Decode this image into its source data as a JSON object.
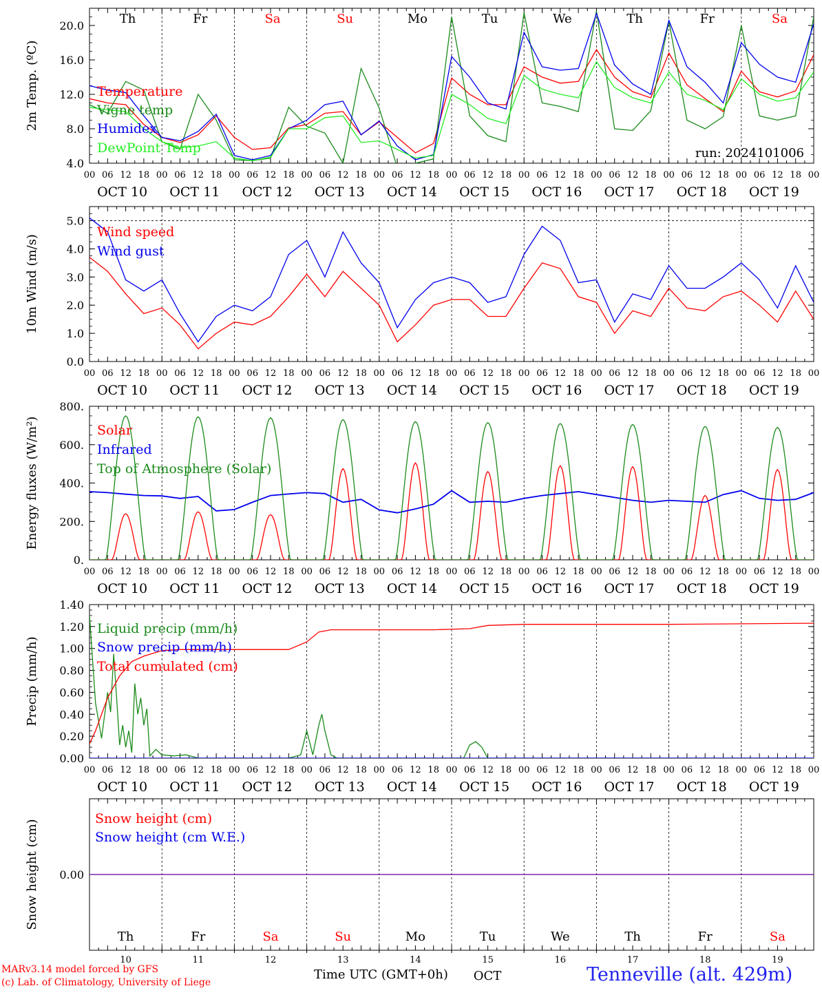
{
  "meteogram": {
    "days": 10,
    "hour_ticks": [
      "00",
      "06",
      "12",
      "18"
    ],
    "date_labels": [
      "OCT 10",
      "OCT 11",
      "OCT 12",
      "OCT 13",
      "OCT 14",
      "OCT 15",
      "OCT 16",
      "OCT 17",
      "OCT 18",
      "OCT 19"
    ],
    "weekdays": [
      "Th",
      "Fr",
      "Sa",
      "Su",
      "Mo",
      "Tu",
      "We",
      "Th",
      "Fr",
      "Sa"
    ],
    "weekday_colors": [
      "#000000",
      "#000000",
      "#ff0000",
      "#ff0000",
      "#000000",
      "#000000",
      "#000000",
      "#000000",
      "#000000",
      "#ff0000"
    ],
    "bottom_day_numbers": [
      "10",
      "11",
      "12",
      "13",
      "14",
      "15",
      "16",
      "17",
      "18",
      "19"
    ],
    "month_label": "OCT"
  },
  "colors": {
    "red": "#ff0000",
    "blue": "#0000ee",
    "dark_green": "#1a8a1a",
    "light_green": "#22ee22",
    "purple": "#7a1fa2"
  },
  "footer": {
    "credit_line1": "MARv3.14 model forced by GFS",
    "credit_line2": "(c) Lab. of Climatology, University of Liege",
    "xaxis_title": "Time UTC (GMT+0h)",
    "station": "Tenneville (alt. 429m)"
  },
  "chart_data": [
    {
      "type": "line",
      "ylabel": "2m Temp. (ºC)",
      "ylim": [
        4,
        22
      ],
      "yticks": [
        "4.0",
        "8.0",
        "12.0",
        "16.0",
        "20.0"
      ],
      "ytick_values": [
        4,
        8,
        12,
        16,
        20
      ],
      "annotation": "run: 2024101006",
      "x_unit": "hours since OCT 10 00 UTC",
      "series": [
        {
          "name": "Temperature",
          "color": "red",
          "x": [
            0,
            6,
            12,
            18,
            24,
            30,
            36,
            42,
            48,
            54,
            60,
            66,
            72,
            78,
            84,
            90,
            96,
            102,
            108,
            114,
            120,
            126,
            132,
            138,
            144,
            150,
            156,
            162,
            168,
            174,
            180,
            186,
            192,
            198,
            204,
            210,
            216,
            222,
            228,
            234,
            240
          ],
          "values": [
            11.5,
            11.0,
            10.8,
            8.5,
            7.0,
            6.4,
            7.3,
            9.5,
            7.0,
            5.6,
            5.8,
            8.1,
            8.5,
            9.8,
            10.0,
            7.3,
            8.8,
            7.0,
            5.2,
            6.3,
            13.9,
            12.0,
            10.8,
            10.8,
            15.2,
            14.0,
            13.3,
            13.5,
            17.2,
            14.0,
            12.3,
            11.6,
            16.8,
            13.1,
            11.5,
            10.0,
            14.7,
            12.3,
            11.7,
            12.4,
            16.6
          ]
        },
        {
          "name": "Vigne temp",
          "color": "dark_green",
          "x": [
            0,
            6,
            12,
            18,
            24,
            30,
            36,
            42,
            48,
            54,
            60,
            66,
            72,
            78,
            84,
            90,
            96,
            102,
            108,
            114,
            120,
            126,
            132,
            138,
            144,
            150,
            156,
            162,
            168,
            174,
            180,
            186,
            192,
            198,
            204,
            210,
            216,
            222,
            228,
            234,
            240
          ],
          "values": [
            10.8,
            9.8,
            13.5,
            12.5,
            6.5,
            5.6,
            12.0,
            9.0,
            4.4,
            4.3,
            4.6,
            10.5,
            8.3,
            7.5,
            4.0,
            15.0,
            10.4,
            3.5,
            4.0,
            4.5,
            21.0,
            9.5,
            7.2,
            6.5,
            21.5,
            11.0,
            10.6,
            10.0,
            21.7,
            8.0,
            7.8,
            10.1,
            20.5,
            9.0,
            8.0,
            9.4,
            20.0,
            9.5,
            9.0,
            9.5,
            21.0
          ]
        },
        {
          "name": "Humidex",
          "color": "blue",
          "x": [
            0,
            6,
            12,
            18,
            24,
            30,
            36,
            42,
            48,
            54,
            60,
            66,
            72,
            78,
            84,
            90,
            96,
            102,
            108,
            114,
            120,
            126,
            132,
            138,
            144,
            150,
            156,
            162,
            168,
            174,
            180,
            186,
            192,
            198,
            204,
            210,
            216,
            222,
            228,
            234,
            240
          ],
          "values": [
            13.0,
            12.5,
            12.2,
            9.5,
            7.0,
            6.6,
            7.7,
            9.7,
            4.9,
            4.4,
            4.9,
            8.0,
            9.0,
            10.8,
            11.2,
            7.3,
            8.9,
            6.0,
            4.4,
            5.0,
            16.4,
            14.0,
            11.0,
            10.3,
            19.2,
            15.2,
            14.8,
            15.0,
            21.4,
            15.4,
            13.2,
            12.0,
            20.6,
            15.2,
            13.4,
            11.0,
            18.0,
            15.5,
            14.0,
            13.4,
            20.2
          ]
        },
        {
          "name": "DewPoint Temp",
          "color": "light_green",
          "x": [
            0,
            6,
            12,
            18,
            24,
            30,
            36,
            42,
            48,
            54,
            60,
            66,
            72,
            78,
            84,
            90,
            96,
            102,
            108,
            114,
            120,
            126,
            132,
            138,
            144,
            150,
            156,
            162,
            168,
            174,
            180,
            186,
            192,
            198,
            204,
            210,
            216,
            222,
            228,
            234,
            240
          ],
          "values": [
            10.5,
            10.2,
            10.0,
            8.0,
            6.5,
            5.8,
            6.0,
            6.5,
            4.6,
            4.3,
            4.7,
            8.0,
            8.0,
            9.3,
            9.5,
            6.4,
            6.6,
            5.6,
            4.6,
            4.9,
            12.0,
            10.8,
            9.2,
            8.6,
            14.2,
            12.6,
            12.0,
            11.6,
            15.8,
            12.8,
            11.6,
            11.0,
            14.6,
            12.0,
            11.3,
            10.2,
            13.8,
            12.0,
            11.2,
            11.6,
            14.6
          ]
        }
      ]
    },
    {
      "type": "line",
      "ylabel": "10m Wind (m/s)",
      "ylim": [
        0,
        5.5
      ],
      "yticks": [
        "0.0",
        "1.0",
        "2.0",
        "3.0",
        "4.0",
        "5.0"
      ],
      "ytick_values": [
        0,
        1,
        2,
        3,
        4,
        5
      ],
      "reference_line": 5.0,
      "x_unit": "hours since OCT 10 00 UTC",
      "series": [
        {
          "name": "Wind speed",
          "color": "red",
          "x": [
            0,
            6,
            12,
            18,
            24,
            30,
            36,
            42,
            48,
            54,
            60,
            66,
            72,
            78,
            84,
            90,
            96,
            102,
            108,
            114,
            120,
            126,
            132,
            138,
            144,
            150,
            156,
            162,
            168,
            174,
            180,
            186,
            192,
            198,
            204,
            210,
            216,
            222,
            228,
            234,
            240
          ],
          "values": [
            3.7,
            3.2,
            2.4,
            1.7,
            1.9,
            1.3,
            0.45,
            1.0,
            1.4,
            1.3,
            1.6,
            2.3,
            3.1,
            2.3,
            3.2,
            2.6,
            2.0,
            0.7,
            1.3,
            2.0,
            2.2,
            2.2,
            1.6,
            1.6,
            2.6,
            3.5,
            3.3,
            2.3,
            2.1,
            1.0,
            1.8,
            1.6,
            2.6,
            1.9,
            1.8,
            2.3,
            2.5,
            2.0,
            1.4,
            2.5,
            1.5
          ]
        },
        {
          "name": "Wind gust",
          "color": "blue",
          "x": [
            0,
            6,
            12,
            18,
            24,
            30,
            36,
            42,
            48,
            54,
            60,
            66,
            72,
            78,
            84,
            90,
            96,
            102,
            108,
            114,
            120,
            126,
            132,
            138,
            144,
            150,
            156,
            162,
            168,
            174,
            180,
            186,
            192,
            198,
            204,
            210,
            216,
            222,
            228,
            234,
            240
          ],
          "values": [
            5.1,
            4.6,
            2.9,
            2.5,
            2.9,
            1.7,
            0.7,
            1.6,
            2.0,
            1.8,
            2.3,
            3.8,
            4.3,
            3.0,
            4.6,
            3.5,
            2.8,
            1.2,
            2.2,
            2.8,
            3.0,
            2.8,
            2.1,
            2.3,
            3.8,
            4.8,
            4.3,
            2.8,
            2.9,
            1.4,
            2.4,
            2.2,
            3.4,
            2.6,
            2.6,
            3.0,
            3.5,
            2.9,
            1.9,
            3.4,
            2.1
          ]
        }
      ]
    },
    {
      "type": "line",
      "ylabel": "Energy fluxes (W/m²)",
      "ylim": [
        0,
        800
      ],
      "yticks": [
        "0.",
        "200.",
        "400.",
        "600.",
        "800."
      ],
      "ytick_values": [
        0,
        200,
        400,
        600,
        800
      ],
      "x_unit": "hours since OCT 10 00 UTC",
      "series": [
        {
          "name": "Solar",
          "color": "red",
          "daily_peak_hour": 12,
          "daily_peaks": [
            240,
            250,
            235,
            475,
            505,
            460,
            490,
            485,
            335,
            470
          ]
        },
        {
          "name": "Infrared",
          "color": "blue",
          "x": [
            0,
            6,
            12,
            18,
            24,
            30,
            36,
            42,
            48,
            54,
            60,
            66,
            72,
            78,
            84,
            90,
            96,
            102,
            108,
            114,
            120,
            126,
            132,
            138,
            144,
            150,
            156,
            162,
            168,
            174,
            180,
            186,
            192,
            198,
            204,
            210,
            216,
            222,
            228,
            234,
            240
          ],
          "values": [
            355,
            350,
            342,
            335,
            333,
            320,
            330,
            255,
            262,
            300,
            335,
            343,
            350,
            345,
            300,
            315,
            260,
            245,
            265,
            290,
            360,
            300,
            305,
            300,
            320,
            335,
            345,
            355,
            340,
            325,
            310,
            300,
            310,
            305,
            300,
            340,
            360,
            320,
            310,
            315,
            350
          ]
        },
        {
          "name": "Top of Atmosphere (Solar)",
          "color": "dark_green",
          "daily_peak_hour": 12,
          "daily_peaks": [
            750,
            745,
            740,
            730,
            720,
            715,
            710,
            705,
            695,
            690
          ]
        }
      ]
    },
    {
      "type": "line",
      "ylabel": "Precip (mm/h)",
      "ylim": [
        0,
        1.4
      ],
      "yticks": [
        "0.00",
        "0.20",
        "0.40",
        "0.60",
        "0.80",
        "1.00",
        "1.20",
        "1.40"
      ],
      "ytick_values": [
        0,
        0.2,
        0.4,
        0.6,
        0.8,
        1.0,
        1.2,
        1.4
      ],
      "x_unit": "hours since OCT 10 00 UTC",
      "series": [
        {
          "name": "Liquid precip (mm/h)",
          "color": "dark_green",
          "x": [
            0,
            2,
            4,
            6,
            7,
            8,
            9,
            10,
            11,
            12,
            13,
            14,
            15,
            16,
            17,
            18,
            19,
            20,
            22,
            24,
            28,
            32,
            36,
            40,
            66,
            70,
            72,
            74,
            76,
            77,
            78,
            80,
            82,
            124,
            126,
            128,
            130,
            132,
            240
          ],
          "values": [
            1.3,
            0.5,
            0.18,
            0.6,
            0.42,
            0.95,
            0.55,
            0.12,
            0.3,
            0.1,
            0.25,
            0.05,
            0.68,
            0.4,
            0.55,
            0.3,
            0.45,
            0.02,
            0.08,
            0.03,
            0.02,
            0.03,
            0.0,
            0.0,
            0.0,
            0.03,
            0.25,
            0.03,
            0.3,
            0.4,
            0.25,
            0.03,
            0.0,
            0.0,
            0.12,
            0.15,
            0.1,
            0.0,
            0.0
          ]
        },
        {
          "name": "Snow precip (mm/h)",
          "color": "blue",
          "x": [
            0,
            240
          ],
          "values": [
            0.0,
            0.0
          ]
        },
        {
          "name": "Total cumulated (cm)",
          "color": "red",
          "x": [
            0,
            2,
            6,
            10,
            14,
            18,
            24,
            30,
            48,
            66,
            72,
            76,
            80,
            84,
            96,
            114,
            126,
            132,
            144,
            192,
            240
          ],
          "values": [
            0.13,
            0.25,
            0.55,
            0.75,
            0.88,
            0.93,
            0.98,
            0.99,
            0.99,
            0.99,
            1.06,
            1.15,
            1.17,
            1.17,
            1.17,
            1.17,
            1.18,
            1.21,
            1.22,
            1.22,
            1.23
          ]
        }
      ]
    },
    {
      "type": "line",
      "ylabel": "Snow height (cm)",
      "ylim": [
        -1,
        1
      ],
      "yticks": [
        "0.00"
      ],
      "ytick_values": [
        0
      ],
      "x_unit": "hours since OCT 10 00 UTC",
      "series": [
        {
          "name": "Snow height (cm)",
          "color": "red",
          "x": [
            0,
            240
          ],
          "values": [
            0,
            0
          ]
        },
        {
          "name": "Snow height (cm W.E.)",
          "color": "blue",
          "x": [
            0,
            240
          ],
          "values": [
            0,
            0
          ]
        }
      ]
    }
  ]
}
